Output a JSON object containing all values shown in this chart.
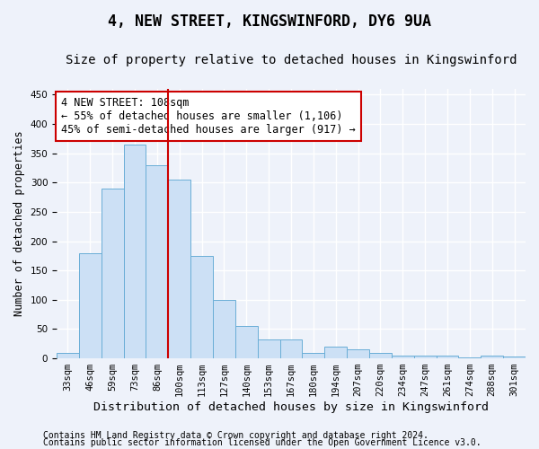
{
  "title": "4, NEW STREET, KINGSWINFORD, DY6 9UA",
  "subtitle": "Size of property relative to detached houses in Kingswinford",
  "xlabel": "Distribution of detached houses by size in Kingswinford",
  "ylabel": "Number of detached properties",
  "categories": [
    "33sqm",
    "46sqm",
    "59sqm",
    "73sqm",
    "86sqm",
    "100sqm",
    "113sqm",
    "127sqm",
    "140sqm",
    "153sqm",
    "167sqm",
    "180sqm",
    "194sqm",
    "207sqm",
    "220sqm",
    "234sqm",
    "247sqm",
    "261sqm",
    "274sqm",
    "288sqm",
    "301sqm"
  ],
  "values": [
    10,
    180,
    290,
    365,
    330,
    305,
    175,
    100,
    55,
    32,
    32,
    10,
    20,
    15,
    10,
    5,
    5,
    5,
    2,
    5,
    3
  ],
  "bar_color": "#cce0f5",
  "bar_edge_color": "#6aaed6",
  "vline_x": 5,
  "vline_color": "#cc0000",
  "annotation_text": "4 NEW STREET: 108sqm\n← 55% of detached houses are smaller (1,106)\n45% of semi-detached houses are larger (917) →",
  "annotation_box_color": "white",
  "annotation_box_edge_color": "#cc0000",
  "ylim": [
    0,
    460
  ],
  "yticks": [
    0,
    50,
    100,
    150,
    200,
    250,
    300,
    350,
    400,
    450
  ],
  "footer1": "Contains HM Land Registry data © Crown copyright and database right 2024.",
  "footer2": "Contains public sector information licensed under the Open Government Licence v3.0.",
  "background_color": "#eef2fa",
  "plot_bg_color": "#eef2fa",
  "grid_color": "#ffffff",
  "title_fontsize": 12,
  "subtitle_fontsize": 10,
  "xlabel_fontsize": 9.5,
  "ylabel_fontsize": 8.5,
  "tick_fontsize": 7.5,
  "annotation_fontsize": 8.5,
  "footer_fontsize": 7
}
